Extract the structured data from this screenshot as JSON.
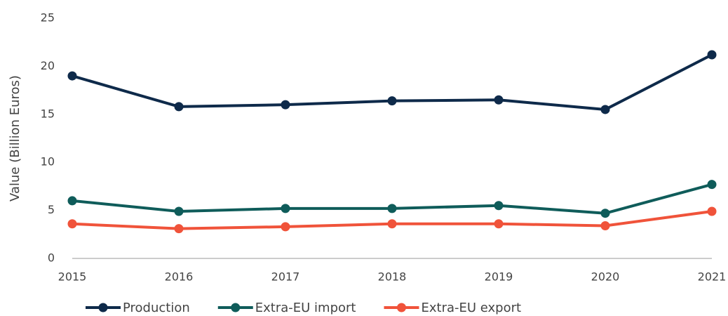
{
  "chart_data": {
    "type": "line",
    "y_label": "Value (Billion Euros)",
    "categories": [
      "2015",
      "2016",
      "2017",
      "2018",
      "2019",
      "2020",
      "2021"
    ],
    "series": [
      {
        "name": "Production",
        "color": "#0e2a4a",
        "values": [
          19.0,
          15.8,
          16.0,
          16.4,
          16.5,
          15.5,
          21.2
        ]
      },
      {
        "name": "Extra-EU import",
        "color": "#0f5c5a",
        "values": [
          6.0,
          4.9,
          5.2,
          5.2,
          5.5,
          4.7,
          7.7
        ]
      },
      {
        "name": "Extra-EU export",
        "color": "#f0533a",
        "values": [
          3.6,
          3.1,
          3.3,
          3.6,
          3.6,
          3.4,
          4.9
        ]
      }
    ],
    "ylim": [
      0,
      25
    ],
    "yticks": [
      0,
      5,
      10,
      15,
      20,
      25
    ],
    "grid": false,
    "legend": "bottom"
  }
}
